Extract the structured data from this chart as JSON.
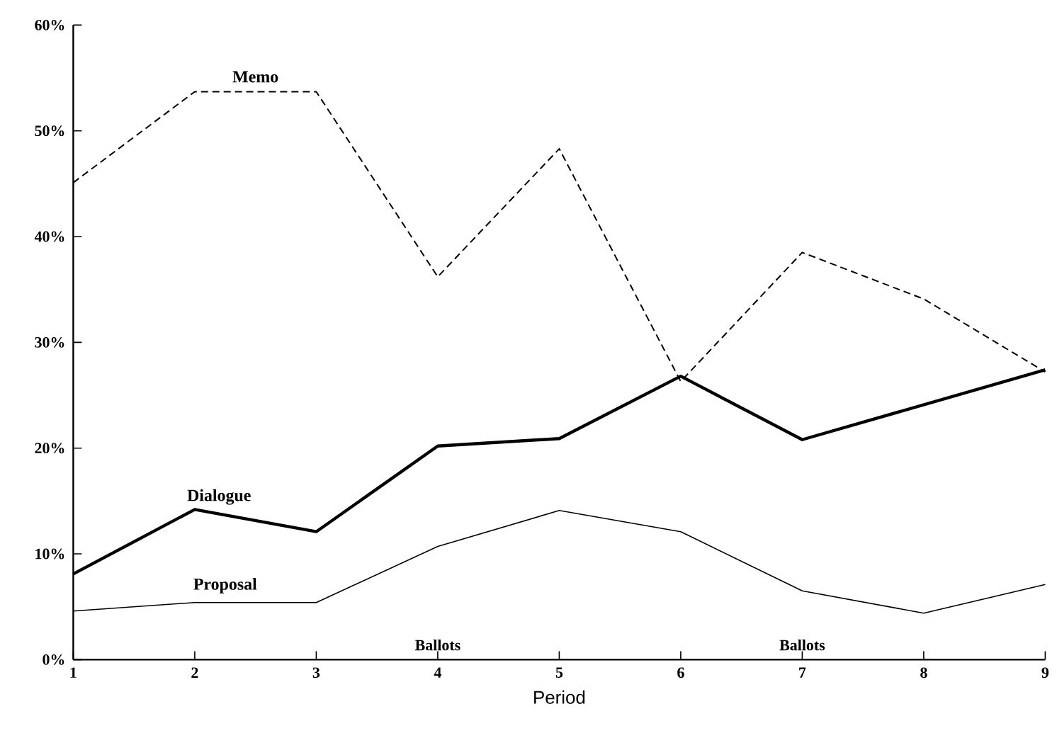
{
  "chart_data": {
    "type": "line",
    "xlabel": "Period",
    "x": [
      1,
      2,
      3,
      4,
      5,
      6,
      7,
      8,
      9
    ],
    "series": [
      {
        "name": "Memo",
        "color": "#000000",
        "line_style": "dashed",
        "values": [
          45.1,
          53.7,
          53.7,
          36.2,
          48.3,
          26.3,
          38.5,
          34.1,
          27.2
        ]
      },
      {
        "name": "Dialogue",
        "color": "#000000",
        "line_style": "solid",
        "values": [
          8.1,
          14.2,
          12.1,
          20.2,
          20.9,
          26.8,
          20.8,
          24.1,
          27.4
        ]
      },
      {
        "name": "Proposal",
        "color": "#000000",
        "line_style": "solid",
        "values": [
          4.6,
          5.4,
          5.4,
          10.7,
          14.1,
          12.1,
          6.5,
          4.4,
          7.1
        ]
      }
    ],
    "xlim": [
      1,
      9
    ],
    "xticks": [
      1,
      2,
      3,
      4,
      5,
      6,
      7,
      8,
      9
    ],
    "ylim": [
      0,
      60
    ],
    "yticks": [
      {
        "value": 0,
        "label": "0%"
      },
      {
        "value": 10,
        "label": "10%"
      },
      {
        "value": 20,
        "label": "20%"
      },
      {
        "value": 30,
        "label": "30%"
      },
      {
        "value": 40,
        "label": "40%"
      },
      {
        "value": 50,
        "label": "50%"
      },
      {
        "value": 60,
        "label": "60%"
      }
    ],
    "annotations": [
      "Ballots",
      "Ballots"
    ],
    "grid": false,
    "legend": false,
    "marker": "none"
  }
}
